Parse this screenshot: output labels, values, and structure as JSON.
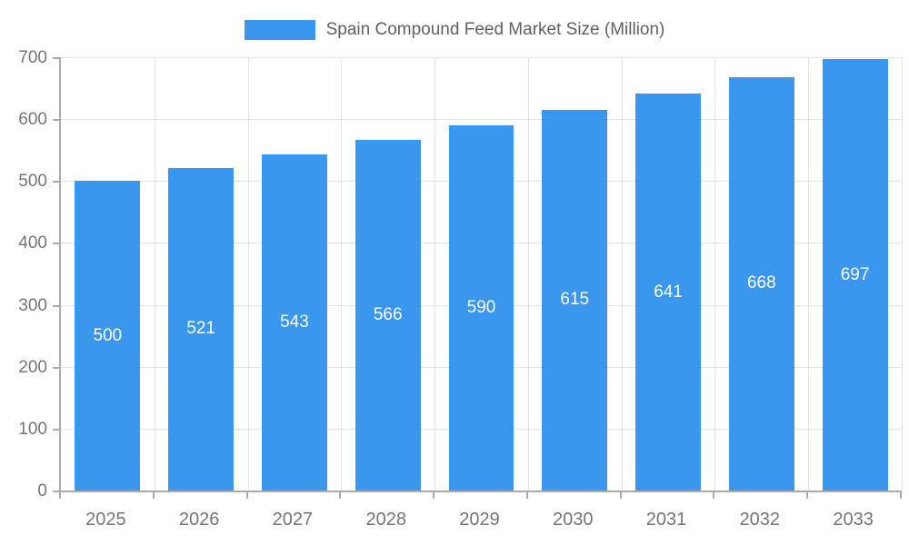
{
  "legend": {
    "label": "Spain Compound Feed Market Size (Million)"
  },
  "chart_data": {
    "type": "bar",
    "title": "Spain Compound Feed Market Size (Million)",
    "categories": [
      "2025",
      "2026",
      "2027",
      "2028",
      "2029",
      "2030",
      "2031",
      "2032",
      "2033"
    ],
    "values": [
      500,
      521,
      543,
      566,
      590,
      615,
      641,
      668,
      697
    ],
    "value_labels": [
      "500",
      "521",
      "543",
      "566",
      "590",
      "615",
      "641",
      "668",
      "697"
    ],
    "xlabel": "",
    "ylabel": "",
    "ylim": [
      0,
      700
    ],
    "yticks": [
      0,
      100,
      200,
      300,
      400,
      500,
      600,
      700
    ],
    "grid": true,
    "legend_position": "top",
    "bar_color": "#3B96EE",
    "value_label_color": "#FFFFFF",
    "tick_label_color": "#757575",
    "gridline_color": "#E2E2E2",
    "axis_color": "#ABABAB"
  }
}
